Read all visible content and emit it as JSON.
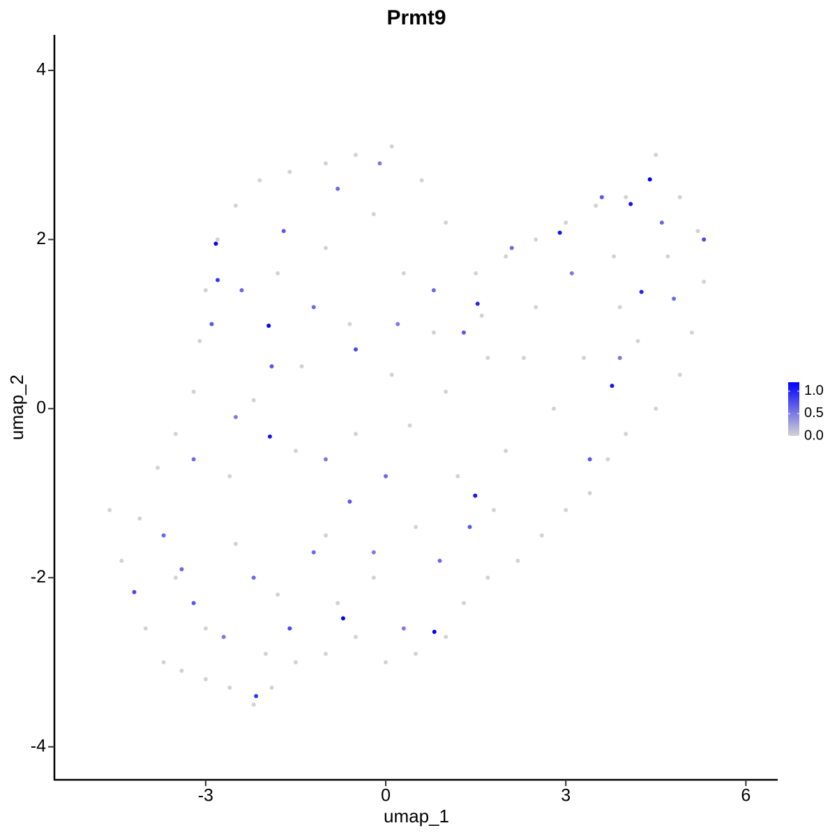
{
  "chart_data": {
    "type": "scatter",
    "title": "Prmt9",
    "x_label": "umap_1",
    "y_label": "umap_2",
    "xlim": [
      -5.52,
      6.53
    ],
    "ylim": [
      -4.39,
      4.42
    ],
    "xticks": [
      -3,
      0,
      3,
      6
    ],
    "yticks": [
      -4,
      -2,
      0,
      2,
      4
    ],
    "color_scale": {
      "low": "#d3d3d3",
      "high": "#0000ff",
      "lim": [
        0,
        1.2
      ],
      "ticks": [
        {
          "value": 0,
          "label": "0.0"
        },
        {
          "value": 0.5,
          "label": "0.5"
        },
        {
          "value": 1,
          "label": "1.0"
        }
      ]
    },
    "x": [
      -4.6,
      -4.4,
      -4.0,
      -3.7,
      -3.4,
      -3.0,
      -2.6,
      -2.2,
      -1.9,
      -1.5,
      -1.0,
      -0.5,
      0,
      0.5,
      1.0,
      1.3,
      1.7,
      2.2,
      2.6,
      3.0,
      3.4,
      3.7,
      4.0,
      4.5,
      4.9,
      5.1,
      5.3,
      5.2,
      4.9,
      4.5,
      4.0,
      3.5,
      3.0,
      2.5,
      2.0,
      1.5,
      1.0,
      0.6,
      0.1,
      -0.5,
      -1.0,
      -1.6,
      -2.1,
      -2.5,
      -2.8,
      -3.0,
      -3.1,
      -3.2,
      -3.5,
      -3.8,
      -4.1,
      -3.5,
      -2.5,
      -1.8,
      -1.0,
      -0.2,
      0.5,
      1.2,
      2.0,
      2.8,
      3.3,
      4.2,
      3.8,
      2.5,
      1.7,
      0.8,
      0.1,
      -0.6,
      -1.4,
      -2.2,
      -2.6,
      -1.5,
      -0.5,
      0.4,
      1.0,
      -1.0,
      -0.2,
      -1.8,
      0.3,
      1.6,
      2.3,
      3.9,
      4.7,
      1.8,
      -0.8,
      -3.0,
      -2.0,
      -3.7,
      -3.2,
      -2.7,
      -2.2,
      -1.6,
      -1.2,
      -0.6,
      0.3,
      0.9,
      1.4,
      -3.2,
      -2.5,
      -1.9,
      -1.2,
      -0.5,
      0.2,
      -2.4,
      -1.7,
      -0.8,
      -0.1,
      0.8,
      1.3,
      2.1,
      3.1,
      3.6,
      4.6,
      5.3,
      4.8,
      3.9,
      3.4,
      0.0,
      -1.0,
      -2.9,
      -3.4,
      -0.2,
      -2.83,
      -1.95,
      -1.93,
      -0.71,
      0.81,
      1.49,
      1.53,
      2.9,
      3.77,
      4.08,
      4.4,
      4.26,
      -2.16,
      -4.19,
      -2.8
    ],
    "y": [
      -1.2,
      -1.8,
      -2.6,
      -3.0,
      -3.1,
      -3.2,
      -3.3,
      -3.5,
      -3.3,
      -3.0,
      -2.9,
      -2.7,
      -3.0,
      -2.9,
      -2.7,
      -2.3,
      -2.0,
      -1.8,
      -1.5,
      -1.2,
      -1.0,
      -0.6,
      -0.3,
      0.0,
      0.4,
      0.9,
      1.5,
      2.1,
      2.5,
      3.0,
      2.5,
      2.4,
      2.2,
      2.0,
      1.8,
      1.6,
      2.2,
      2.7,
      3.1,
      3.0,
      2.9,
      2.8,
      2.7,
      2.4,
      2.0,
      1.4,
      0.8,
      0.2,
      -0.3,
      -0.7,
      -1.3,
      -2.0,
      -1.6,
      -2.2,
      -1.5,
      -2.0,
      -1.4,
      -0.8,
      -0.5,
      0.0,
      0.6,
      0.8,
      1.8,
      1.2,
      0.6,
      0.9,
      0.4,
      1.0,
      0.5,
      0.1,
      -0.8,
      -0.5,
      -0.3,
      -0.2,
      0.2,
      1.9,
      2.3,
      1.6,
      1.6,
      1.1,
      0.6,
      1.2,
      1.8,
      -1.2,
      -2.3,
      -2.6,
      -2.9,
      -1.5,
      -2.3,
      -2.7,
      -2.0,
      -2.6,
      -1.7,
      -1.1,
      -2.6,
      -1.8,
      -1.4,
      -0.6,
      -0.1,
      0.5,
      1.2,
      0.7,
      1.0,
      1.4,
      2.1,
      2.6,
      2.9,
      1.4,
      0.9,
      1.9,
      1.6,
      2.5,
      2.2,
      2.0,
      1.3,
      0.6,
      -0.6,
      -0.8,
      -0.6,
      1.0,
      -1.9,
      -1.7,
      1.95,
      0.98,
      -0.33,
      -2.48,
      -2.64,
      -1.03,
      1.24,
      2.08,
      0.27,
      2.42,
      2.71,
      1.38,
      -3.4,
      -2.17,
      1.52
    ],
    "expression": [
      0,
      0,
      0,
      0,
      0,
      0,
      0,
      0,
      0,
      0,
      0,
      0,
      0,
      0,
      0,
      0,
      0,
      0,
      0,
      0,
      0,
      0,
      0,
      0,
      0,
      0,
      0,
      0,
      0,
      0,
      0,
      0,
      0,
      0,
      0,
      0,
      0,
      0,
      0,
      0,
      0,
      0,
      0,
      0,
      0,
      0,
      0,
      0,
      0,
      0,
      0,
      0,
      0,
      0,
      0,
      0,
      0,
      0,
      0,
      0,
      0,
      0,
      0,
      0,
      0,
      0,
      0,
      0,
      0,
      0,
      0,
      0,
      0,
      0,
      0,
      0,
      0,
      0,
      0,
      0,
      0,
      0,
      0,
      0,
      0,
      0,
      0,
      0.6,
      0.7,
      0.5,
      0.6,
      0.8,
      0.6,
      0.7,
      0.5,
      0.6,
      0.7,
      0.6,
      0.5,
      0.7,
      0.6,
      0.8,
      0.5,
      0.6,
      0.7,
      0.6,
      0.5,
      0.6,
      0.7,
      0.6,
      0.5,
      0.7,
      0.6,
      0.8,
      0.6,
      0.5,
      0.7,
      0.6,
      0.5,
      0.7,
      0.6,
      0.5,
      1.2,
      1.2,
      1.1,
      1.2,
      1.2,
      1.1,
      1.0,
      1.1,
      1.1,
      1.1,
      1.2,
      1.0,
      0.9,
      0.8,
      0.9
    ]
  }
}
